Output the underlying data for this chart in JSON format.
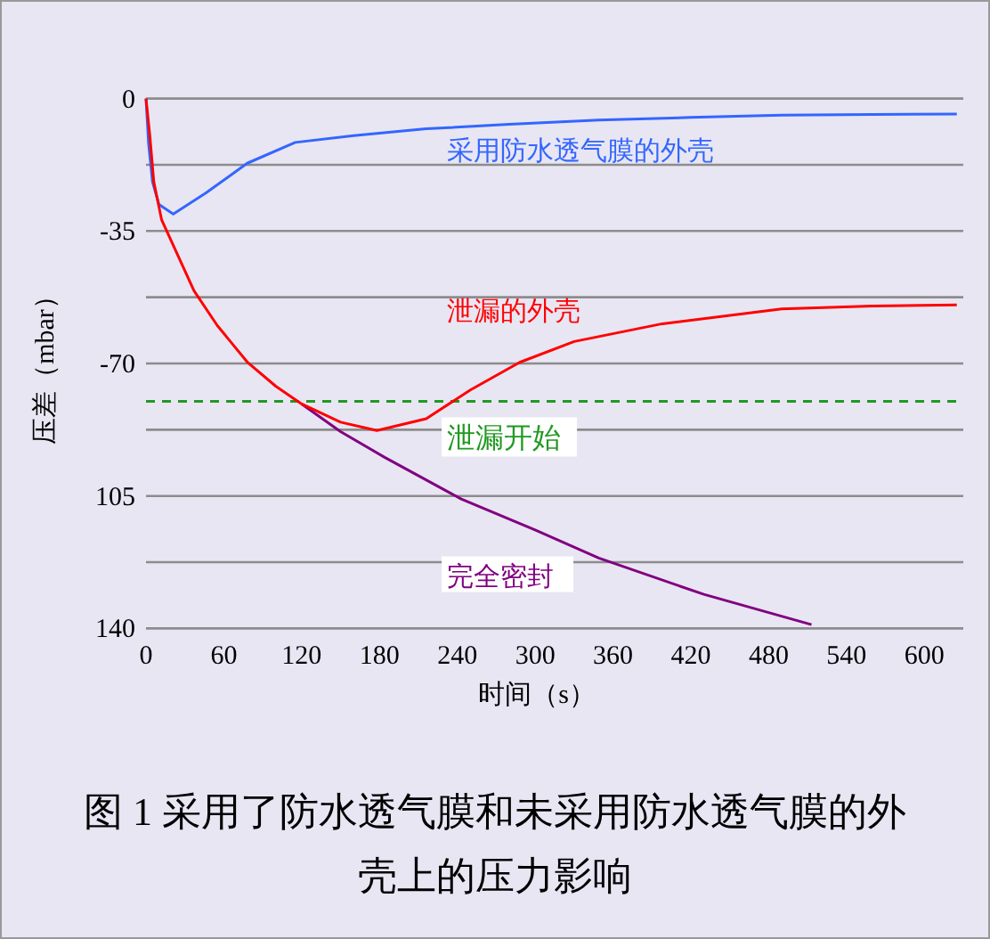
{
  "chart_data": {
    "type": "line",
    "title": "图 1 采用了防水透气膜和未采用防水透气膜的外壳上的压力影响",
    "xlabel": "时间（s）",
    "ylabel": "压差（mbar）",
    "xlim": [
      0,
      630
    ],
    "xticks": [
      0,
      60,
      120,
      180,
      240,
      300,
      360,
      420,
      480,
      540,
      600
    ],
    "ylim": [
      -140,
      0
    ],
    "yticks": [
      {
        "value": 0,
        "label": "0"
      },
      {
        "value": -17.5,
        "label": null
      },
      {
        "value": -35,
        "label": "-35"
      },
      {
        "value": -52.5,
        "label": null
      },
      {
        "value": -70,
        "label": "-70"
      },
      {
        "value": -87.5,
        "label": null
      },
      {
        "value": -105,
        "label": "105"
      },
      {
        "value": -122.5,
        "label": null
      },
      {
        "value": -140,
        "label": "140"
      }
    ],
    "grid": "y",
    "series": [
      {
        "name": "采用防水透气膜的外壳",
        "color": "#3366ff",
        "x": [
          0,
          2,
          5,
          10,
          21,
          46,
          78,
          115,
          160,
          216,
          280,
          349,
          420,
          490,
          560,
          625
        ],
        "values": [
          0,
          -12,
          -22,
          -28,
          -30.5,
          -25,
          -17.1,
          -11.6,
          -9.8,
          -8,
          -6.8,
          -5.7,
          -5,
          -4.4,
          -4.2,
          -4.1
        ]
      },
      {
        "name": "完全密封",
        "color": "#800080",
        "x": [
          120,
          150,
          184,
          243,
          300,
          349,
          430,
          513
        ],
        "values": [
          -80.7,
          -88,
          -94.8,
          -105.8,
          -114,
          -121.4,
          -131,
          -139
        ]
      },
      {
        "name": "泄漏的外壳",
        "color": "#ff0000",
        "x": [
          0,
          3,
          6,
          12,
          20,
          37,
          55,
          78,
          100,
          120,
          150,
          178,
          216,
          250,
          288,
          330,
          398,
          490,
          560,
          625
        ],
        "values": [
          0,
          -10,
          -22,
          -32,
          -38,
          -50.8,
          -60,
          -69.6,
          -76,
          -80.7,
          -85.5,
          -87.7,
          -84.6,
          -77,
          -69.7,
          -64.2,
          -59.5,
          -55.6,
          -54.8,
          -54.5
        ]
      }
    ],
    "ref_lines": [
      {
        "axis": "y",
        "value": -80,
        "label": "泄漏开始",
        "color": "#229922",
        "line_style": "dashed"
      }
    ]
  }
}
